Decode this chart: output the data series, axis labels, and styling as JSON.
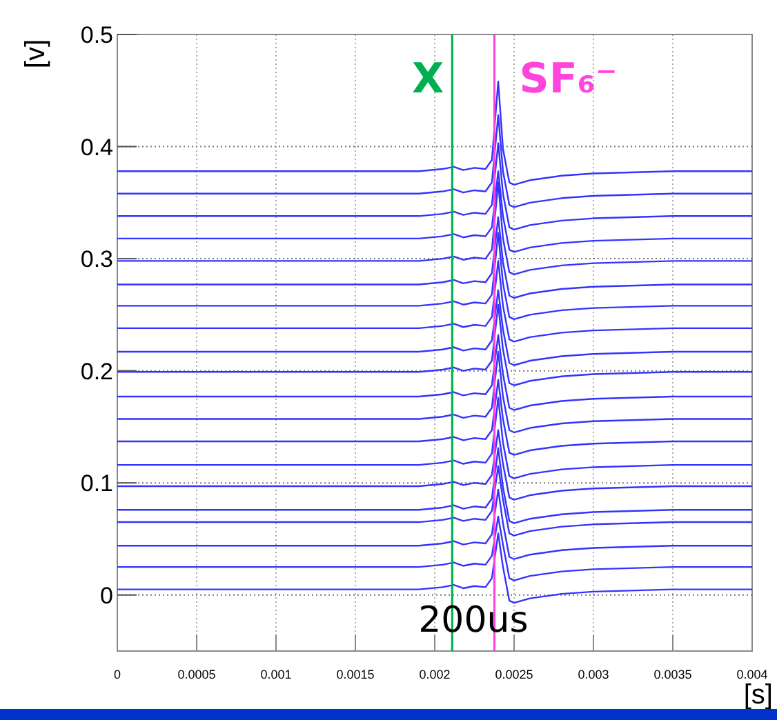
{
  "chart_data": {
    "type": "line",
    "xlabel": "[s]",
    "ylabel": "[v]",
    "xlim": [
      0,
      0.004
    ],
    "ylim": [
      -0.05,
      0.5
    ],
    "xticks": [
      0,
      0.0005,
      0.001,
      0.0015,
      0.002,
      0.0025,
      0.003,
      0.0035,
      0.004
    ],
    "yticks": [
      0,
      0.1,
      0.2,
      0.3,
      0.4,
      0.5
    ],
    "grid": true,
    "x": [
      0,
      0.0019,
      0.00205,
      0.00212,
      0.00218,
      0.00225,
      0.00232,
      0.00236,
      0.0024,
      0.00243,
      0.00247,
      0.0025,
      0.0026,
      0.0028,
      0.003,
      0.0035,
      0.004
    ],
    "series": [
      {
        "color": "#3333ff",
        "values": [
          0.378,
          0.378,
          0.38,
          0.382,
          0.379,
          0.381,
          0.38,
          0.388,
          0.458,
          0.398,
          0.368,
          0.366,
          0.37,
          0.374,
          0.376,
          0.378,
          0.378
        ]
      },
      {
        "color": "#3333ff",
        "values": [
          0.358,
          0.358,
          0.36,
          0.362,
          0.359,
          0.361,
          0.36,
          0.368,
          0.428,
          0.378,
          0.348,
          0.346,
          0.35,
          0.354,
          0.356,
          0.358,
          0.358
        ]
      },
      {
        "color": "#3333ff",
        "values": [
          0.338,
          0.338,
          0.34,
          0.342,
          0.339,
          0.341,
          0.34,
          0.348,
          0.403,
          0.358,
          0.328,
          0.326,
          0.33,
          0.334,
          0.336,
          0.338,
          0.338
        ]
      },
      {
        "color": "#3333ff",
        "values": [
          0.318,
          0.318,
          0.32,
          0.322,
          0.319,
          0.321,
          0.32,
          0.328,
          0.378,
          0.338,
          0.308,
          0.306,
          0.31,
          0.314,
          0.316,
          0.318,
          0.318
        ]
      },
      {
        "color": "#3333ff",
        "values": [
          0.298,
          0.298,
          0.3,
          0.302,
          0.299,
          0.301,
          0.3,
          0.308,
          0.368,
          0.318,
          0.288,
          0.286,
          0.29,
          0.294,
          0.296,
          0.298,
          0.298
        ]
      },
      {
        "color": "#3333ff",
        "values": [
          0.277,
          0.277,
          0.279,
          0.281,
          0.278,
          0.28,
          0.279,
          0.287,
          0.337,
          0.297,
          0.267,
          0.265,
          0.269,
          0.273,
          0.275,
          0.277,
          0.277
        ]
      },
      {
        "color": "#3333ff",
        "values": [
          0.258,
          0.258,
          0.26,
          0.262,
          0.259,
          0.261,
          0.26,
          0.268,
          0.323,
          0.278,
          0.248,
          0.246,
          0.25,
          0.254,
          0.256,
          0.258,
          0.258
        ]
      },
      {
        "color": "#3333ff",
        "values": [
          0.238,
          0.238,
          0.24,
          0.242,
          0.239,
          0.241,
          0.24,
          0.248,
          0.298,
          0.258,
          0.228,
          0.226,
          0.23,
          0.234,
          0.236,
          0.238,
          0.238
        ]
      },
      {
        "color": "#3333ff",
        "values": [
          0.217,
          0.217,
          0.219,
          0.221,
          0.218,
          0.22,
          0.219,
          0.227,
          0.272,
          0.237,
          0.207,
          0.205,
          0.209,
          0.213,
          0.215,
          0.217,
          0.217
        ]
      },
      {
        "color": "#3333ff",
        "values": [
          0.199,
          0.199,
          0.201,
          0.203,
          0.2,
          0.202,
          0.201,
          0.209,
          0.259,
          0.219,
          0.189,
          0.187,
          0.191,
          0.195,
          0.197,
          0.199,
          0.199
        ]
      },
      {
        "color": "#3333ff",
        "values": [
          0.177,
          0.177,
          0.179,
          0.181,
          0.178,
          0.18,
          0.179,
          0.187,
          0.232,
          0.197,
          0.167,
          0.165,
          0.169,
          0.173,
          0.175,
          0.177,
          0.177
        ]
      },
      {
        "color": "#3333ff",
        "values": [
          0.157,
          0.157,
          0.159,
          0.161,
          0.158,
          0.16,
          0.159,
          0.167,
          0.217,
          0.177,
          0.147,
          0.145,
          0.149,
          0.153,
          0.155,
          0.157,
          0.157
        ]
      },
      {
        "color": "#3333ff",
        "values": [
          0.137,
          0.137,
          0.139,
          0.141,
          0.138,
          0.14,
          0.139,
          0.147,
          0.192,
          0.157,
          0.127,
          0.125,
          0.129,
          0.133,
          0.135,
          0.137,
          0.137
        ]
      },
      {
        "color": "#3333ff",
        "values": [
          0.116,
          0.116,
          0.118,
          0.12,
          0.117,
          0.119,
          0.118,
          0.126,
          0.176,
          0.136,
          0.106,
          0.104,
          0.108,
          0.112,
          0.114,
          0.116,
          0.116
        ]
      },
      {
        "color": "#3333ff",
        "values": [
          0.097,
          0.097,
          0.099,
          0.101,
          0.098,
          0.1,
          0.099,
          0.107,
          0.147,
          0.117,
          0.087,
          0.085,
          0.089,
          0.093,
          0.095,
          0.097,
          0.097
        ]
      },
      {
        "color": "#3333ff",
        "values": [
          0.076,
          0.076,
          0.078,
          0.08,
          0.077,
          0.079,
          0.078,
          0.086,
          0.131,
          0.096,
          0.066,
          0.064,
          0.068,
          0.072,
          0.074,
          0.076,
          0.076
        ]
      },
      {
        "color": "#3333ff",
        "values": [
          0.065,
          0.065,
          0.067,
          0.069,
          0.066,
          0.068,
          0.067,
          0.075,
          0.115,
          0.085,
          0.055,
          0.053,
          0.057,
          0.061,
          0.063,
          0.065,
          0.065
        ]
      },
      {
        "color": "#3333ff",
        "values": [
          0.044,
          0.044,
          0.046,
          0.048,
          0.045,
          0.047,
          0.046,
          0.054,
          0.094,
          0.064,
          0.034,
          0.032,
          0.036,
          0.04,
          0.042,
          0.044,
          0.044
        ]
      },
      {
        "color": "#3333ff",
        "values": [
          0.025,
          0.025,
          0.027,
          0.029,
          0.026,
          0.028,
          0.027,
          0.035,
          0.07,
          0.045,
          0.015,
          0.013,
          0.017,
          0.021,
          0.023,
          0.025,
          0.025
        ]
      },
      {
        "color": "#3333ff",
        "values": [
          0.005,
          0.005,
          0.007,
          0.009,
          0.006,
          0.008,
          0.007,
          0.015,
          0.055,
          0.025,
          -0.005,
          -0.007,
          -0.003,
          0.001,
          0.003,
          0.005,
          0.005
        ]
      }
    ],
    "ref_lines": [
      {
        "axis": "x",
        "value": 0.00211,
        "label": "X",
        "color": "#00b050"
      },
      {
        "axis": "x",
        "value": 0.002376,
        "label": "SF₆⁻",
        "color": "#ff44dd"
      }
    ],
    "annotations": [
      "200us"
    ]
  }
}
